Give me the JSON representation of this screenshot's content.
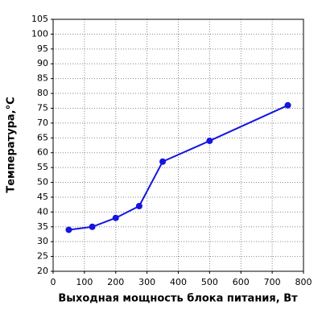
{
  "chart_data": {
    "type": "line",
    "x_label": "Выходная мощность блока питания, Вт",
    "y_label": "Температура,°C",
    "series": [
      {
        "color": "#1515e0",
        "x": [
          50,
          125,
          200,
          275,
          350,
          500,
          750
        ],
        "values": [
          34,
          35,
          38,
          42,
          57,
          64,
          76
        ]
      }
    ],
    "xlim": [
      0,
      800
    ],
    "xticks": [
      0,
      100,
      200,
      300,
      400,
      500,
      600,
      700,
      800
    ],
    "ylim": [
      20,
      105
    ],
    "yticks": [
      20,
      25,
      30,
      35,
      40,
      45,
      50,
      55,
      60,
      65,
      70,
      75,
      80,
      85,
      90,
      95,
      100,
      105
    ],
    "grid": true
  }
}
